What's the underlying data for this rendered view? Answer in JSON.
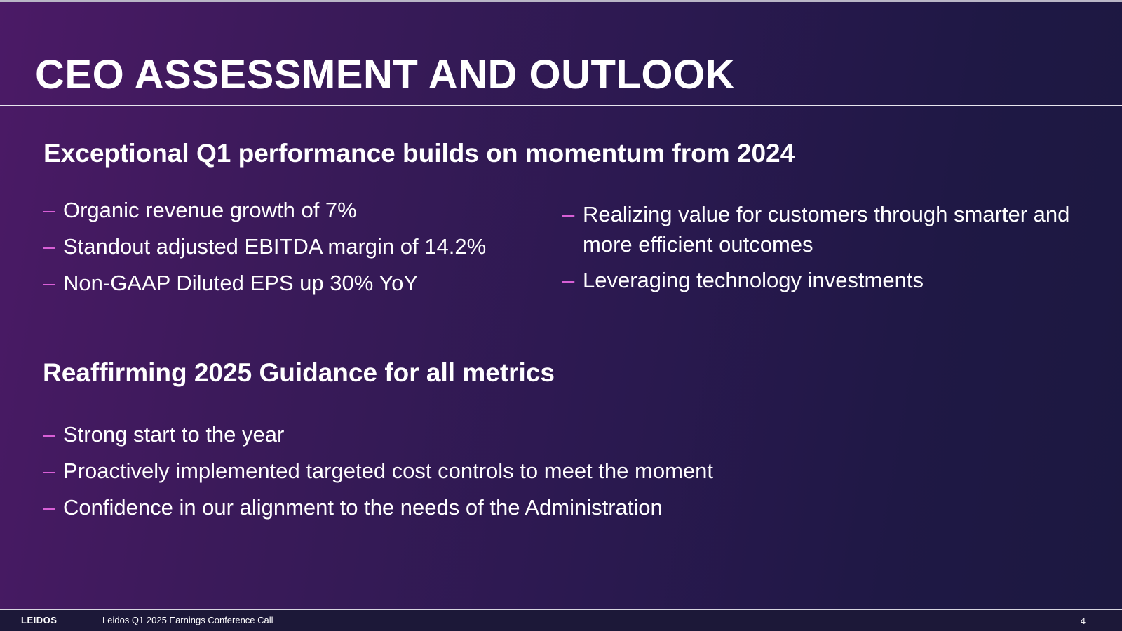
{
  "slide": {
    "title": "CEO ASSESSMENT AND OUTLOOK",
    "sections": [
      {
        "heading": "Exceptional Q1 performance builds on momentum from 2024",
        "left_bullets": [
          "Organic revenue growth of 7%",
          "Standout adjusted EBITDA margin of 14.2%",
          "Non-GAAP Diluted EPS up 30% YoY"
        ],
        "right_bullets": [
          "Realizing value for customers through smarter and more efficient outcomes",
          "Leveraging technology investments"
        ]
      },
      {
        "heading": "Reaffirming 2025 Guidance for all metrics",
        "bullets": [
          "Strong start to the year",
          "Proactively implemented targeted cost controls to meet the moment",
          "Confidence in our alignment to the needs of the Administration"
        ]
      }
    ],
    "bullet_marker": "–",
    "colors": {
      "background_start": "#4b1a66",
      "background_end": "#1c1840",
      "bullet_marker": "#d85fd6",
      "text": "#ffffff"
    }
  },
  "footer": {
    "brand": "LEIDOS",
    "text": "Leidos Q1 2025 Earnings Conference Call",
    "page_number": "4"
  }
}
